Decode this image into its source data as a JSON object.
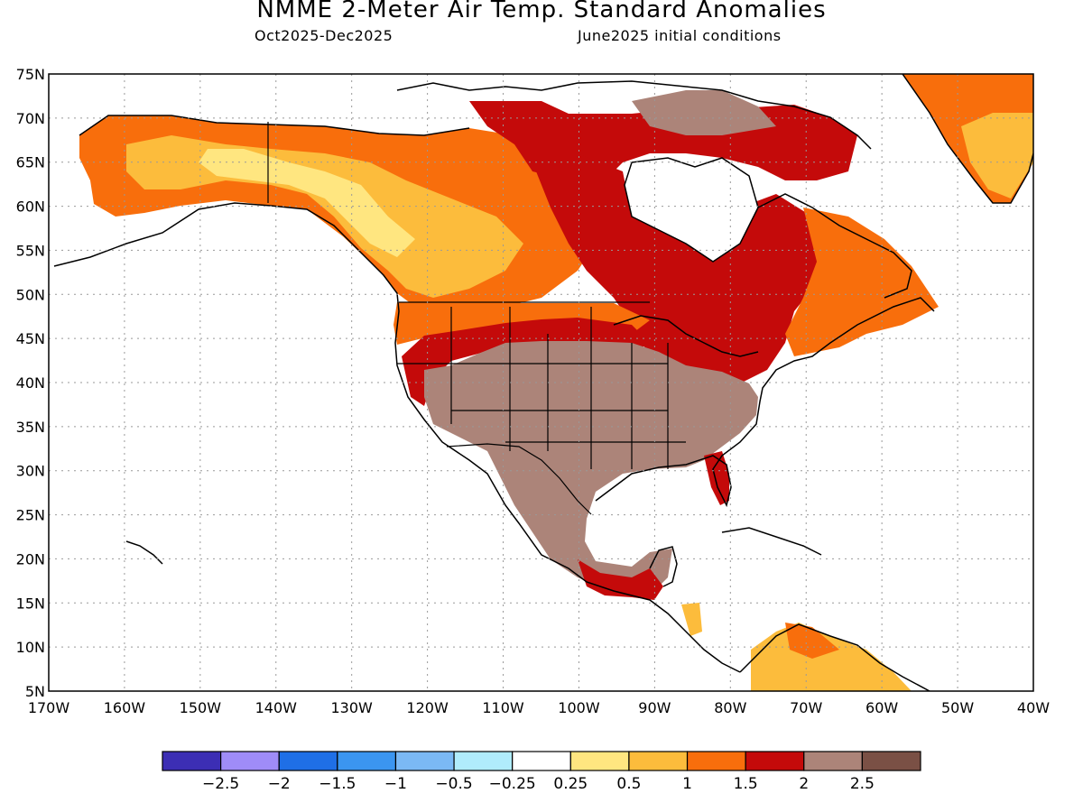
{
  "title": "NMME 2-Meter Air Temp. Standard Anomalies",
  "subtitle_left": "Oct2025-Dec2025",
  "subtitle_right": "June2025 initial conditions",
  "map": {
    "lon_range": [
      -170,
      -40
    ],
    "lat_range": [
      5,
      75
    ],
    "lat_ticks": [
      "75N",
      "70N",
      "65N",
      "60N",
      "55N",
      "50N",
      "45N",
      "40N",
      "35N",
      "30N",
      "25N",
      "20N",
      "15N",
      "10N",
      "5N"
    ],
    "lon_ticks": [
      "170W",
      "160W",
      "150W",
      "140W",
      "130W",
      "120W",
      "110W",
      "100W",
      "90W",
      "80W",
      "70W",
      "60W",
      "50W",
      "40W"
    ],
    "gridlines": "dotted"
  },
  "colorbar": {
    "colors": [
      "#3c2eb4",
      "#9f8cf8",
      "#1f6fe6",
      "#3b95f0",
      "#7bb9f5",
      "#b0ecfc",
      "#ffffff",
      "#ffe680",
      "#fcbc3c",
      "#f86e0c",
      "#c40a0a",
      "#ac8479",
      "#7a5045"
    ],
    "labels": [
      "-2.5",
      "-2",
      "-1.5",
      "-1",
      "-0.5",
      "-0.25",
      "0.25",
      "0.5",
      "1",
      "1.5",
      "2",
      "2.5"
    ]
  }
}
